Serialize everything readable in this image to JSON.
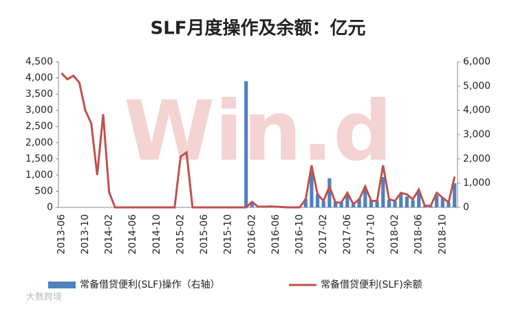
{
  "chart_data": {
    "type": "bar-line",
    "title": "SLF月度操作及余额：亿元",
    "watermark": "Win.d",
    "source_mark": "大数跨境",
    "categories": [
      "2013-06",
      null,
      null,
      null,
      "2013-10",
      null,
      null,
      null,
      "2014-02",
      null,
      null,
      null,
      "2014-06",
      null,
      null,
      null,
      "2014-10",
      null,
      null,
      null,
      "2015-02",
      null,
      null,
      null,
      "2015-06",
      null,
      null,
      null,
      "2015-10",
      null,
      null,
      null,
      "2016-02",
      null,
      null,
      null,
      "2016-06",
      null,
      null,
      null,
      "2016-10",
      null,
      null,
      null,
      "2017-02",
      null,
      null,
      null,
      "2017-06",
      null,
      null,
      null,
      "2017-10",
      null,
      null,
      null,
      "2018-02",
      null,
      null,
      null,
      "2018-06",
      null,
      null,
      null,
      "2018-10",
      null,
      null
    ],
    "series": [
      {
        "name": "常备借贷便利(SLF)操作（右轴）",
        "type": "bar",
        "axis": "y2",
        "color": "#4f81bd",
        "values": [
          0,
          0,
          0,
          0,
          0,
          0,
          0,
          0,
          0,
          0,
          0,
          0,
          0,
          0,
          0,
          0,
          0,
          0,
          0,
          0,
          0,
          0,
          0,
          0,
          0,
          0,
          0,
          0,
          0,
          0,
          0,
          5200,
          200,
          0,
          50,
          0,
          50,
          0,
          0,
          0,
          50,
          350,
          1450,
          550,
          250,
          1200,
          250,
          200,
          550,
          150,
          350,
          800,
          300,
          250,
          1250,
          300,
          250,
          550,
          450,
          300,
          650,
          50,
          50,
          500,
          400,
          200,
          1000
        ]
      },
      {
        "name": "常备借贷便利(SLF)余额",
        "type": "line",
        "color": "#c0504d",
        "values": [
          4150,
          3960,
          4070,
          3860,
          3000,
          2600,
          1000,
          2880,
          470,
          0,
          0,
          0,
          0,
          0,
          0,
          0,
          0,
          0,
          0,
          0,
          1570,
          1700,
          0,
          0,
          0,
          0,
          0,
          0,
          0,
          0,
          0,
          0,
          170,
          20,
          20,
          30,
          20,
          10,
          0,
          0,
          0,
          250,
          1300,
          400,
          200,
          650,
          150,
          150,
          450,
          100,
          250,
          650,
          200,
          200,
          1300,
          250,
          200,
          450,
          400,
          250,
          550,
          50,
          50,
          450,
          300,
          150,
          950
        ]
      }
    ],
    "ylim": [
      0,
      4500
    ],
    "yticks": [
      0,
      500,
      {
        "value": 1000,
        "label": "1,000"
      },
      {
        "value": 1500,
        "label": "1,500"
      },
      {
        "value": 2000,
        "label": "2,000"
      },
      {
        "value": 2500,
        "label": "2,500"
      },
      {
        "value": 3000,
        "label": "3,000"
      },
      {
        "value": 3500,
        "label": "3,500"
      },
      {
        "value": 4000,
        "label": "4,000"
      },
      {
        "value": 4500,
        "label": "4,500"
      }
    ],
    "y2lim": [
      0,
      6000
    ],
    "y2ticks": [
      0,
      {
        "value": 1000,
        "label": "1,000"
      },
      {
        "value": 2000,
        "label": "2,000"
      },
      {
        "value": 3000,
        "label": "3,000"
      },
      {
        "value": 4000,
        "label": "4,000"
      },
      {
        "value": 5000,
        "label": "5,000"
      },
      {
        "value": 6000,
        "label": "6,000"
      }
    ],
    "legend": "bottom"
  }
}
